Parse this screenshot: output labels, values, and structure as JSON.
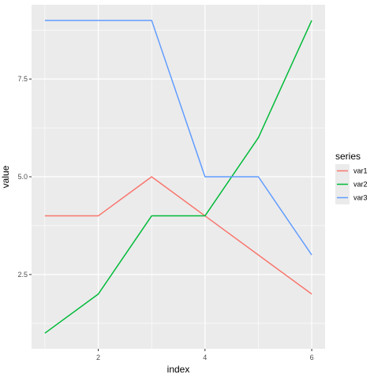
{
  "chart_data": {
    "type": "line",
    "x": [
      1,
      2,
      3,
      4,
      5,
      6
    ],
    "series": [
      {
        "name": "var1",
        "color": "#F8766D",
        "values": [
          4,
          4,
          5,
          4,
          3,
          2
        ]
      },
      {
        "name": "var2",
        "color": "#00BA38",
        "values": [
          1,
          2,
          4,
          4,
          6,
          9
        ]
      },
      {
        "name": "var3",
        "color": "#619CFF",
        "values": [
          9,
          9,
          9,
          5,
          5,
          3
        ]
      }
    ],
    "xlabel": "index",
    "ylabel": "value",
    "xlim": [
      0.75,
      6.25
    ],
    "ylim": [
      0.6,
      9.4
    ],
    "x_ticks": [
      2,
      4,
      6
    ],
    "x_tick_labels": [
      "2",
      "4",
      "6"
    ],
    "y_ticks": [
      2.5,
      5.0,
      7.5
    ],
    "y_tick_labels": [
      "2.5",
      "5.0",
      "7.5"
    ],
    "legend_title": "series",
    "legend_position": "right",
    "grid": true,
    "panel_background": "#EBEBEB",
    "grid_color": "#FFFFFF"
  }
}
